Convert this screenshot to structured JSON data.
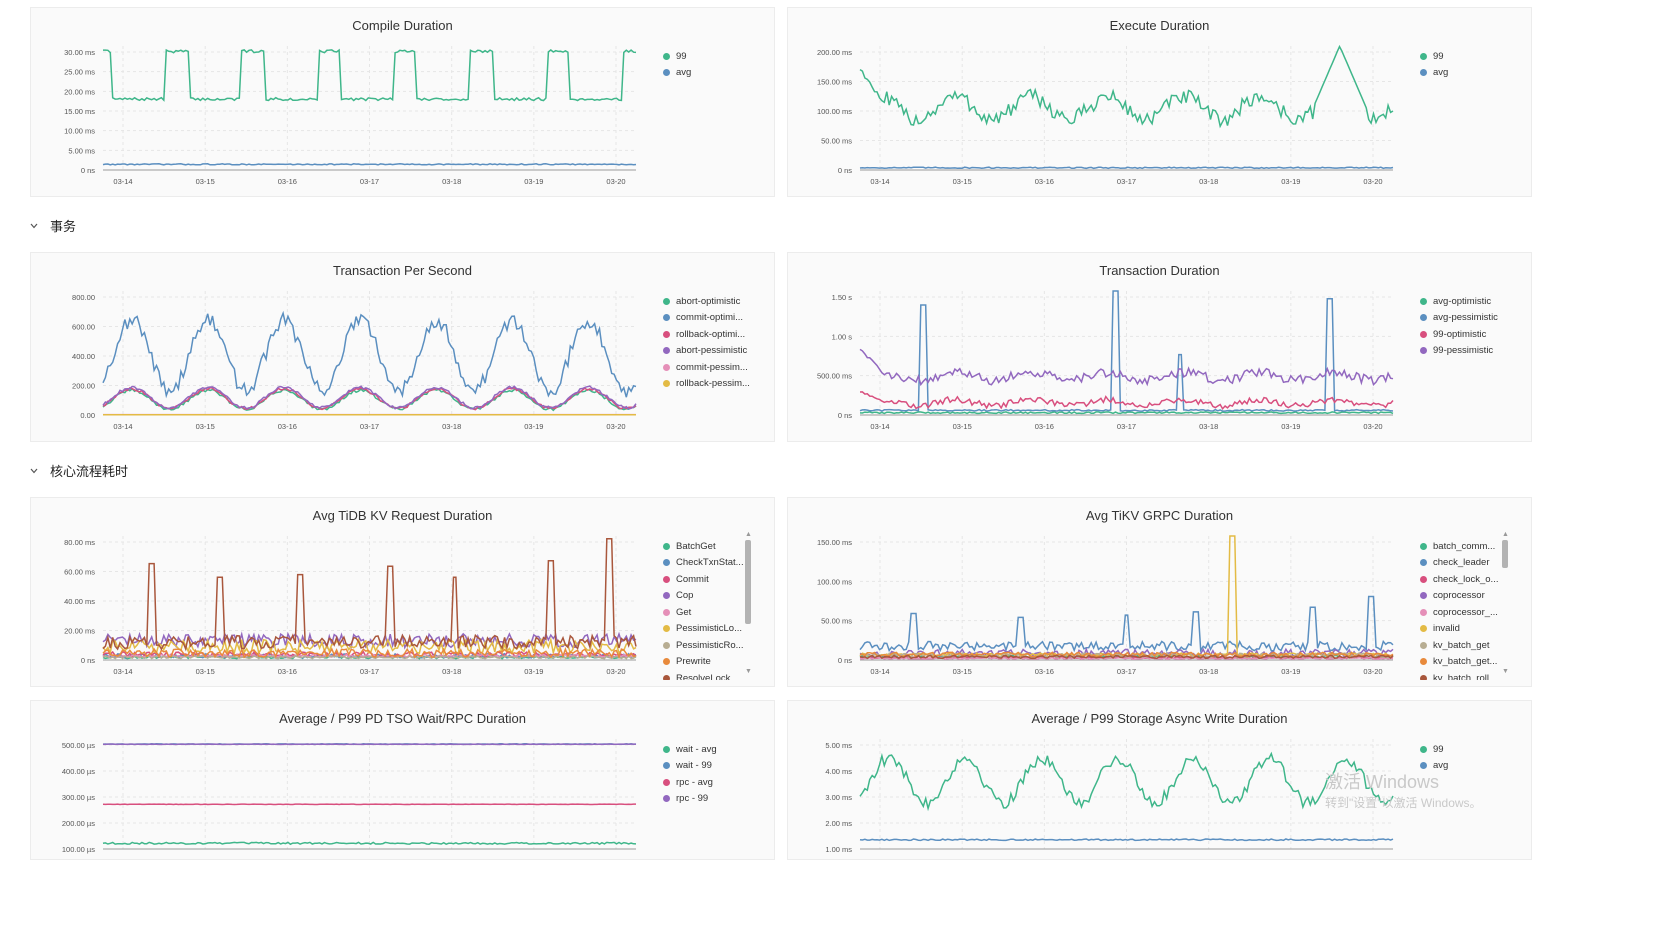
{
  "sections": [
    {
      "label": "事务"
    },
    {
      "label": "核心流程耗时"
    }
  ],
  "watermark": {
    "line1": "激活 Windows",
    "line2": "转到\"设置\"以激活 Windows。"
  },
  "panels": [
    {
      "title": "Compile Duration",
      "legend": [
        "99",
        "avg"
      ],
      "chart_data": {
        "type": "line",
        "title": "Compile Duration",
        "x": [
          "03-14",
          "03-15",
          "03-16",
          "03-17",
          "03-18",
          "03-19",
          "03-20"
        ],
        "y_ticks": [
          "30.00 ms",
          "25.00 ms",
          "20.00 ms",
          "15.00 ms",
          "10.00 ms",
          "5.00 ms",
          "0 ns"
        ],
        "ylim": [
          0,
          35
        ],
        "series": [
          {
            "name": "99",
            "color": "#3fb68a",
            "pattern": "plateau",
            "base": 20,
            "peak": 33.5,
            "period": 1.0,
            "phase": 0.18
          },
          {
            "name": "avg",
            "color": "#5b8fc0",
            "pattern": "flat",
            "base": 1.6,
            "noise": 0.15
          }
        ]
      }
    },
    {
      "title": "Execute Duration",
      "legend": [
        "99",
        "avg"
      ],
      "chart_data": {
        "type": "line",
        "title": "Execute Duration",
        "x": [
          "03-14",
          "03-15",
          "03-16",
          "03-17",
          "03-18",
          "03-19",
          "03-20"
        ],
        "y_ticks": [
          "200.00 ms",
          "150.00 ms",
          "100.00 ms",
          "50.00 ms",
          "0 ns"
        ],
        "ylim": [
          0,
          220
        ],
        "series": [
          {
            "name": "99",
            "color": "#3fb68a",
            "pattern": "wave",
            "base": 110,
            "amp": 20,
            "noise": 14,
            "start": 180,
            "endspike": 220
          },
          {
            "name": "avg",
            "color": "#5b8fc0",
            "pattern": "flat",
            "base": 4,
            "noise": 1
          }
        ]
      }
    },
    {
      "title": "Transaction Per Second",
      "legend": [
        "abort-optimistic",
        "commit-optimi...",
        "rollback-optimi...",
        "abort-pessimistic",
        "commit-pessim...",
        "rollback-pessim..."
      ],
      "chart_data": {
        "type": "line",
        "title": "Transaction Per Second",
        "x": [
          "03-14",
          "03-15",
          "03-16",
          "03-17",
          "03-18",
          "03-19",
          "03-20"
        ],
        "y_ticks": [
          "800.00",
          "600.00",
          "400.00",
          "200.00",
          "0.00"
        ],
        "ylim": [
          0,
          850
        ],
        "series": [
          {
            "name": "abort-optimistic",
            "color": "#3fb68a",
            "pattern": "daily",
            "lo": 40,
            "hi": 170,
            "noise": 10
          },
          {
            "name": "commit-optimi...",
            "color": "#5b8fc0",
            "pattern": "daily",
            "lo": 170,
            "hi": 650,
            "noise": 50
          },
          {
            "name": "rollback-optimi...",
            "color": "#d84f7e",
            "pattern": "daily",
            "lo": 45,
            "hi": 180,
            "noise": 10
          },
          {
            "name": "abort-pessimistic",
            "color": "#9268bf",
            "pattern": "daily",
            "lo": 50,
            "hi": 190,
            "noise": 10
          },
          {
            "name": "commit-pessim...",
            "color": "#e58fb8",
            "pattern": "flat",
            "base": 3,
            "noise": 0
          },
          {
            "name": "rollback-pessim...",
            "color": "#e3bb45",
            "pattern": "flat",
            "base": 2,
            "noise": 0
          }
        ]
      }
    },
    {
      "title": "Transaction Duration",
      "legend": [
        "avg-optimistic",
        "avg-pessimistic",
        "99-optimistic",
        "99-pessimistic"
      ],
      "chart_data": {
        "type": "line",
        "title": "Transaction Duration",
        "x": [
          "03-14",
          "03-15",
          "03-16",
          "03-17",
          "03-18",
          "03-19",
          "03-20"
        ],
        "y_ticks": [
          "1.50 s",
          "1.00 s",
          "500.00 ms",
          "0 ns"
        ],
        "ylim": [
          0,
          1.6
        ],
        "series": [
          {
            "name": "avg-optimistic",
            "color": "#3fb68a",
            "pattern": "flat",
            "base": 0.03,
            "noise": 0.01
          },
          {
            "name": "avg-pessimistic",
            "color": "#5b8fc0",
            "pattern": "spiky",
            "base": 0.05,
            "noise": 0.02,
            "spikes": [
              0.12,
              0.48,
              0.6,
              0.88
            ],
            "spikeHeights": [
              1.42,
              1.6,
              0.78,
              1.5
            ]
          },
          {
            "name": "99-optimistic",
            "color": "#d84f7e",
            "pattern": "wave",
            "base": 0.16,
            "amp": 0.04,
            "noise": 0.04,
            "start": 0.3
          },
          {
            "name": "99-pessimistic",
            "color": "#9268bf",
            "pattern": "wave",
            "base": 0.5,
            "amp": 0.05,
            "noise": 0.06,
            "start": 0.85
          }
        ]
      }
    },
    {
      "title": "Avg TiDB KV Request Duration",
      "legend": [
        "BatchGet",
        "CheckTxnStat...",
        "Commit",
        "Cop",
        "Get",
        "PessimisticLo...",
        "PessimisticRo...",
        "Prewrite",
        "ResolveLock"
      ],
      "chart_data": {
        "type": "line",
        "title": "Avg TiDB KV Request Duration",
        "x": [
          "03-14",
          "03-15",
          "03-16",
          "03-17",
          "03-18",
          "03-19",
          "03-20"
        ],
        "y_ticks": [
          "80.00 ms",
          "60.00 ms",
          "40.00 ms",
          "20.00 ms",
          "0 ns"
        ],
        "ylim": [
          0,
          90
        ],
        "series": [
          {
            "name": "BatchGet",
            "color": "#3fb68a",
            "pattern": "flat",
            "base": 2,
            "noise": 1
          },
          {
            "name": "CheckTxnStat...",
            "color": "#5b8fc0",
            "pattern": "flat",
            "base": 3,
            "noise": 1.5
          },
          {
            "name": "Commit",
            "color": "#d84f7e",
            "pattern": "flat",
            "base": 4,
            "noise": 2
          },
          {
            "name": "Cop",
            "color": "#9268bf",
            "pattern": "flat",
            "base": 14,
            "noise": 5
          },
          {
            "name": "Get",
            "color": "#e58fb8",
            "pattern": "flat",
            "base": 3,
            "noise": 1
          },
          {
            "name": "PessimisticLo...",
            "color": "#e3bb45",
            "pattern": "flat",
            "base": 10,
            "noise": 5
          },
          {
            "name": "PessimisticRo...",
            "color": "#b7ad92",
            "pattern": "flat",
            "base": 2,
            "noise": 1
          },
          {
            "name": "Prewrite",
            "color": "#e88a3c",
            "pattern": "flat",
            "base": 5,
            "noise": 3
          },
          {
            "name": "ResolveLock",
            "color": "#a9573c",
            "pattern": "spiky",
            "base": 8,
            "noise": 10,
            "spikes": [
              0.09,
              0.22,
              0.37,
              0.54,
              0.66,
              0.84,
              0.95
            ],
            "spikeHeights": [
              70,
              60,
              62,
              68,
              60,
              72,
              88
            ]
          }
        ]
      }
    },
    {
      "title": "Avg TiKV GRPC Duration",
      "legend": [
        "batch_comm...",
        "check_leader",
        "check_lock_o...",
        "coprocessor",
        "coprocessor_...",
        "invalid",
        "kv_batch_get",
        "kv_batch_get...",
        "kv_batch_roll..."
      ],
      "chart_data": {
        "type": "line",
        "title": "Avg TiKV GRPC Duration",
        "x": [
          "03-14",
          "03-15",
          "03-16",
          "03-17",
          "03-18",
          "03-19",
          "03-20"
        ],
        "y_ticks": [
          "150.00 ms",
          "100.00 ms",
          "50.00 ms",
          "0 ns"
        ],
        "ylim": [
          0,
          160
        ],
        "series": [
          {
            "name": "batch_comm...",
            "color": "#3fb68a",
            "pattern": "flat",
            "base": 4,
            "noise": 2
          },
          {
            "name": "check_leader",
            "color": "#5b8fc0",
            "pattern": "spiky",
            "base": 12,
            "noise": 12,
            "spikes": [
              0.1,
              0.3,
              0.5,
              0.63,
              0.85,
              0.96
            ],
            "spikeHeights": [
              60,
              55,
              58,
              62,
              68,
              82
            ]
          },
          {
            "name": "check_lock_o...",
            "color": "#d84f7e",
            "pattern": "flat",
            "base": 3,
            "noise": 1
          },
          {
            "name": "coprocessor",
            "color": "#9268bf",
            "pattern": "flat",
            "base": 9,
            "noise": 5
          },
          {
            "name": "coprocessor_...",
            "color": "#e58fb8",
            "pattern": "flat",
            "base": 2,
            "noise": 1
          },
          {
            "name": "invalid",
            "color": "#e3bb45",
            "pattern": "spiky",
            "base": 5,
            "noise": 4,
            "spikes": [
              0.7
            ],
            "spikeHeights": [
              160
            ]
          },
          {
            "name": "kv_batch_get",
            "color": "#b7ad92",
            "pattern": "flat",
            "base": 6,
            "noise": 3
          },
          {
            "name": "kv_batch_get...",
            "color": "#e88a3c",
            "pattern": "flat",
            "base": 7,
            "noise": 3
          },
          {
            "name": "kv_batch_roll...",
            "color": "#a9573c",
            "pattern": "flat",
            "base": 4,
            "noise": 2
          }
        ]
      }
    },
    {
      "title": "Average / P99 PD TSO Wait/RPC Duration",
      "legend": [
        "wait - avg",
        "wait - 99",
        "rpc - avg",
        "rpc - 99"
      ],
      "chart_data": {
        "type": "line",
        "title": "Average / P99 PD TSO Wait/RPC Duration",
        "x": [],
        "y_ticks": [
          "500.00 µs",
          "400.00 µs",
          "300.00 µs",
          "200.00 µs",
          "100.00 µs"
        ],
        "ylim": [
          40,
          520
        ],
        "series": [
          {
            "name": "wait - avg",
            "color": "#3fb68a",
            "pattern": "flat",
            "base": 65,
            "noise": 4
          },
          {
            "name": "wait - 99",
            "color": "#5b8fc0",
            "pattern": "flat",
            "base": 498,
            "noise": 1
          },
          {
            "name": "rpc - avg",
            "color": "#d84f7e",
            "pattern": "flat",
            "base": 235,
            "noise": 1
          },
          {
            "name": "rpc - 99",
            "color": "#9268bf",
            "pattern": "flat",
            "base": 497,
            "noise": 1
          }
        ]
      }
    },
    {
      "title": "Average / P99 Storage Async Write Duration",
      "legend": [
        "99",
        "avg"
      ],
      "chart_data": {
        "type": "line",
        "title": "Average / P99 Storage Async Write Duration",
        "x": [],
        "y_ticks": [
          "5.00 ms",
          "4.00 ms",
          "3.00 ms",
          "2.00 ms",
          "1.00 ms"
        ],
        "ylim": [
          0.6,
          5.1
        ],
        "series": [
          {
            "name": "99",
            "color": "#3fb68a",
            "pattern": "daily",
            "lo": 2.5,
            "hi": 4.3,
            "noise": 0.25
          },
          {
            "name": "avg",
            "color": "#5b8fc0",
            "pattern": "flat",
            "base": 0.98,
            "noise": 0.03
          }
        ]
      }
    }
  ]
}
